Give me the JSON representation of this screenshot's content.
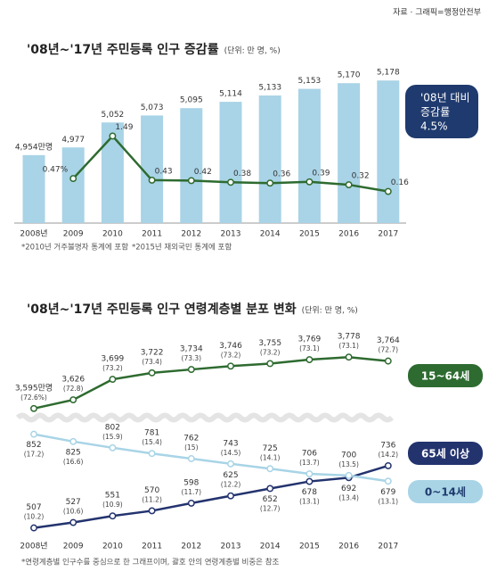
{
  "source": "자료 · 그래픽=행정안전부",
  "chart_data": [
    {
      "type": "bar",
      "title": "'08년~'17년 주민등록 인구 증감률",
      "unit": "(단위: 만 명, %)",
      "categories": [
        "2008년",
        "2009",
        "2010",
        "2011",
        "2012",
        "2013",
        "2014",
        "2015",
        "2016",
        "2017"
      ],
      "series": [
        {
          "type": "bar",
          "color": "#a9d3e6",
          "values": [
            4954,
            4977,
            5052,
            5073,
            5095,
            5114,
            5133,
            5153,
            5170,
            5178
          ],
          "value_labels": [
            "4,954만명",
            "4,977",
            "5,052",
            "5,073",
            "5,095",
            "5,114",
            "5,133",
            "5,153",
            "5,170",
            "5,178"
          ]
        },
        {
          "type": "line",
          "axis": "y2",
          "color": "#2e6b30",
          "values": [
            null,
            0.47,
            1.49,
            0.43,
            0.42,
            0.38,
            0.36,
            0.39,
            0.32,
            0.16
          ],
          "value_labels": [
            null,
            "0.47%",
            "1.49",
            "0.43",
            "0.42",
            "0.38",
            "0.36",
            "0.39",
            "0.32",
            "0.16"
          ]
        }
      ],
      "ylim": [
        4750,
        5200
      ],
      "y2lim": [
        -0.6,
        3.0
      ],
      "badge": [
        "'08년 대비",
        "증감률",
        "4.5%"
      ],
      "notes": [
        "*2010년 거주불명자 통계에 포함",
        "*2015년 재외국민 통계에 포함"
      ]
    },
    {
      "type": "line",
      "title": "'08년~'17년 주민등록 인구 연령계층별 분포 변화",
      "unit": "(단위: 만 명, %)",
      "categories": [
        "2008년",
        "2009",
        "2010",
        "2011",
        "2012",
        "2013",
        "2014",
        "2015",
        "2016",
        "2017"
      ],
      "series": [
        {
          "name": "15~64세",
          "color": "#2e6b30",
          "axis": "y2",
          "values": [
            3595,
            3626,
            3699,
            3722,
            3734,
            3746,
            3755,
            3769,
            3778,
            3764
          ],
          "value_labels": [
            "3,595만명",
            "3,626",
            "3,699",
            "3,722",
            "3,734",
            "3,746",
            "3,755",
            "3,769",
            "3,778",
            "3,764"
          ],
          "share_labels": [
            "(72.6%)",
            "(72.8)",
            "(73.2)",
            "(73.4)",
            "(73.3)",
            "(73.2)",
            "(73.2)",
            "(73.1)",
            "(73.1)",
            "(72.7)"
          ]
        },
        {
          "name": "65세 이상",
          "color": "#23336e",
          "values": [
            507,
            527,
            551,
            570,
            598,
            625,
            652,
            678,
            692,
            736
          ],
          "share_labels": [
            "(10.2)",
            "(10.6)",
            "(10.9)",
            "(11.2)",
            "(11.7)",
            "(12.2)",
            "(12.7)",
            "(13.1)",
            "(13.4)",
            "(14.2)"
          ]
        },
        {
          "name": "0~14세",
          "color": "#a8d4e6",
          "values": [
            852,
            825,
            802,
            781,
            762,
            743,
            725,
            706,
            700,
            679
          ],
          "share_labels": [
            "(17.2)",
            "(16.6)",
            "(15.9)",
            "(15.4)",
            "(15)",
            "(14.5)",
            "(14.1)",
            "(13.7)",
            "(13.5)",
            "(13.1)"
          ]
        }
      ],
      "ylim": [
        440,
        900
      ],
      "y2lim": [
        3480,
        3820
      ],
      "note": "*연령계층별 인구수를 중심으로 한 그래프이며, 괄호 안의 연령계층별 비중은 참조"
    }
  ]
}
